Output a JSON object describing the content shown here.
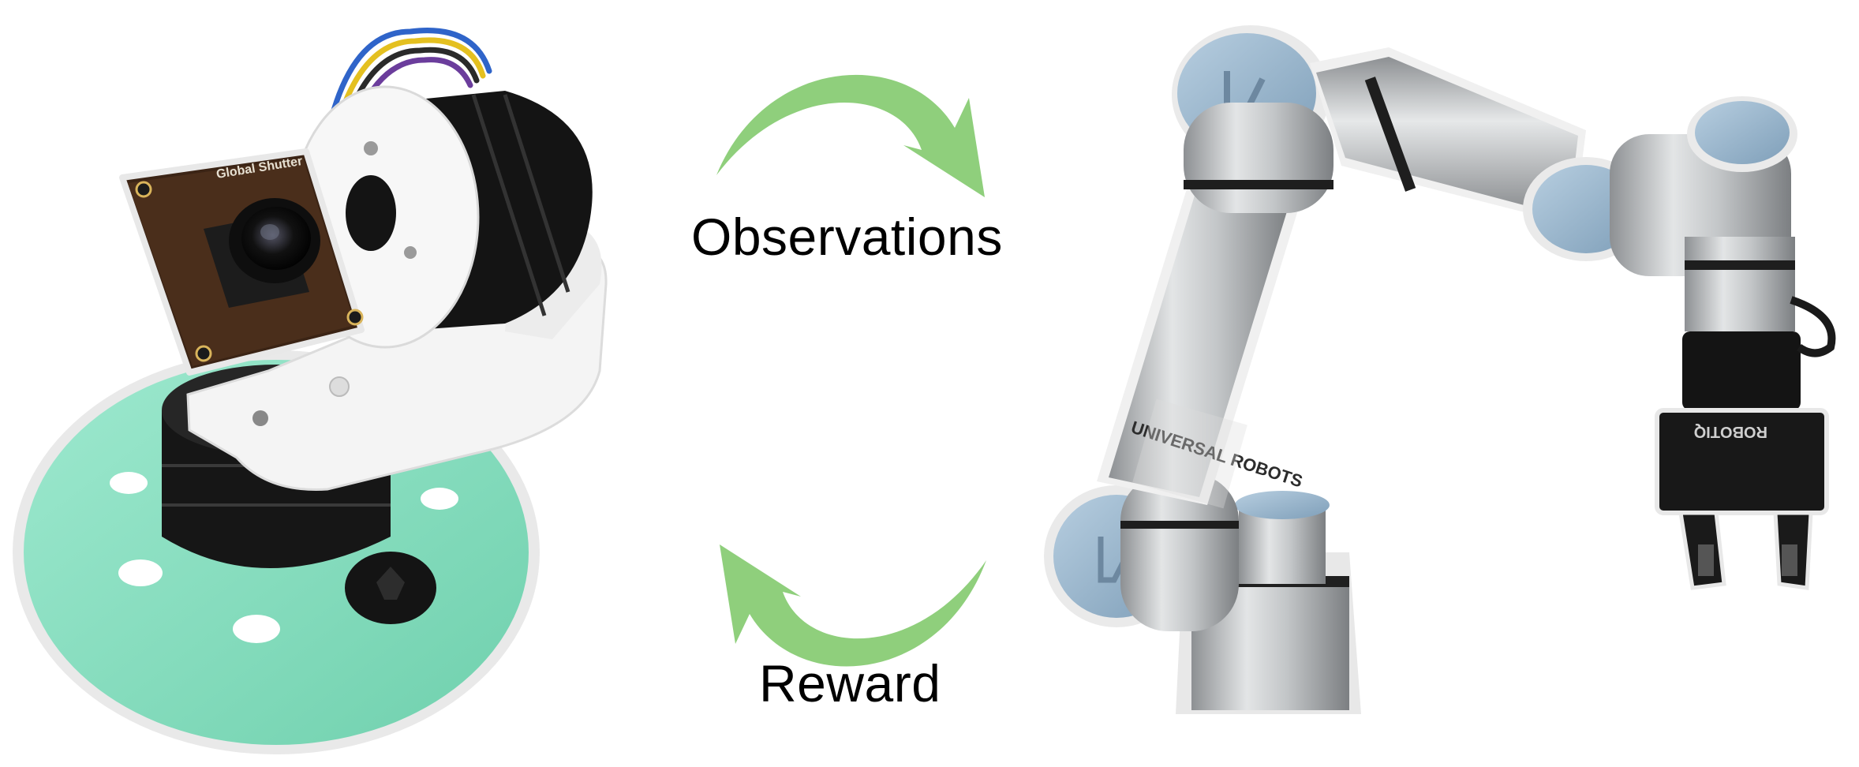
{
  "labels": {
    "observations": "Observations",
    "reward": "Reward"
  },
  "colors": {
    "arrow": "#8fcf7c",
    "foam": "#8ae0c2",
    "robot_metal": "#b9bcbe",
    "robot_cap": "#9fbad0",
    "dark": "#1a1a1a"
  },
  "product_text": {
    "camera_board": "Global Shutter",
    "robot_brand": "UNIVERSAL ROBOTS",
    "gripper_brand": "ROBOTIQ"
  }
}
